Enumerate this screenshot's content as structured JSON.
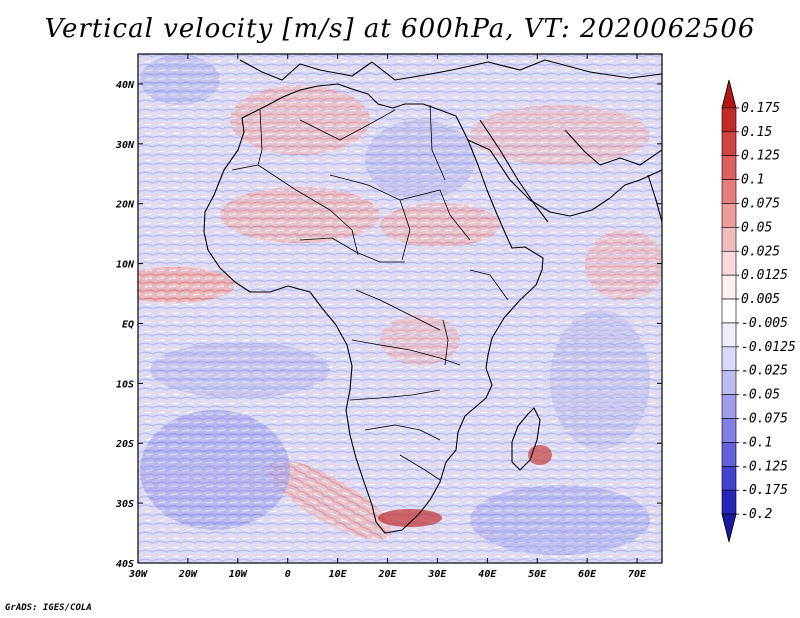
{
  "title": "Vertical velocity [m/s] at 600hPa, VT: 2020062506",
  "credit": "GrADS: IGES/COLA",
  "map": {
    "lon_range": [
      -30,
      75
    ],
    "lat_range": [
      -40,
      45
    ],
    "x_ticks": [
      "30W",
      "20W",
      "10W",
      "0",
      "10E",
      "20E",
      "30E",
      "40E",
      "50E",
      "60E",
      "70E"
    ],
    "x_tick_values": [
      -30,
      -20,
      -10,
      0,
      10,
      20,
      30,
      40,
      50,
      60,
      70
    ],
    "y_ticks": [
      "40N",
      "30N",
      "20N",
      "10N",
      "EQ",
      "10S",
      "20S",
      "30S",
      "40S"
    ],
    "y_tick_values": [
      40,
      30,
      20,
      10,
      0,
      -10,
      -20,
      -30,
      -40
    ]
  },
  "colorbar": {
    "labels": [
      "0.175",
      "0.15",
      "0.125",
      "0.1",
      "0.075",
      "0.05",
      "0.025",
      "0.0125",
      "0.005",
      "-0.005",
      "-0.0125",
      "-0.025",
      "-0.05",
      "-0.075",
      "-0.1",
      "-0.125",
      "-0.175",
      "-0.2"
    ],
    "colors": [
      "#b41414",
      "#c22a2a",
      "#d04444",
      "#dc6060",
      "#e57e7e",
      "#ed9c9c",
      "#f3bcbc",
      "#f8d8d8",
      "#fdf0f0",
      "#ffffff",
      "#eeeefc",
      "#d8d8f8",
      "#bcbcf3",
      "#9e9eec",
      "#8080e4",
      "#6262dc",
      "#4242cc",
      "#2626b8",
      "#1a1aa0"
    ]
  }
}
